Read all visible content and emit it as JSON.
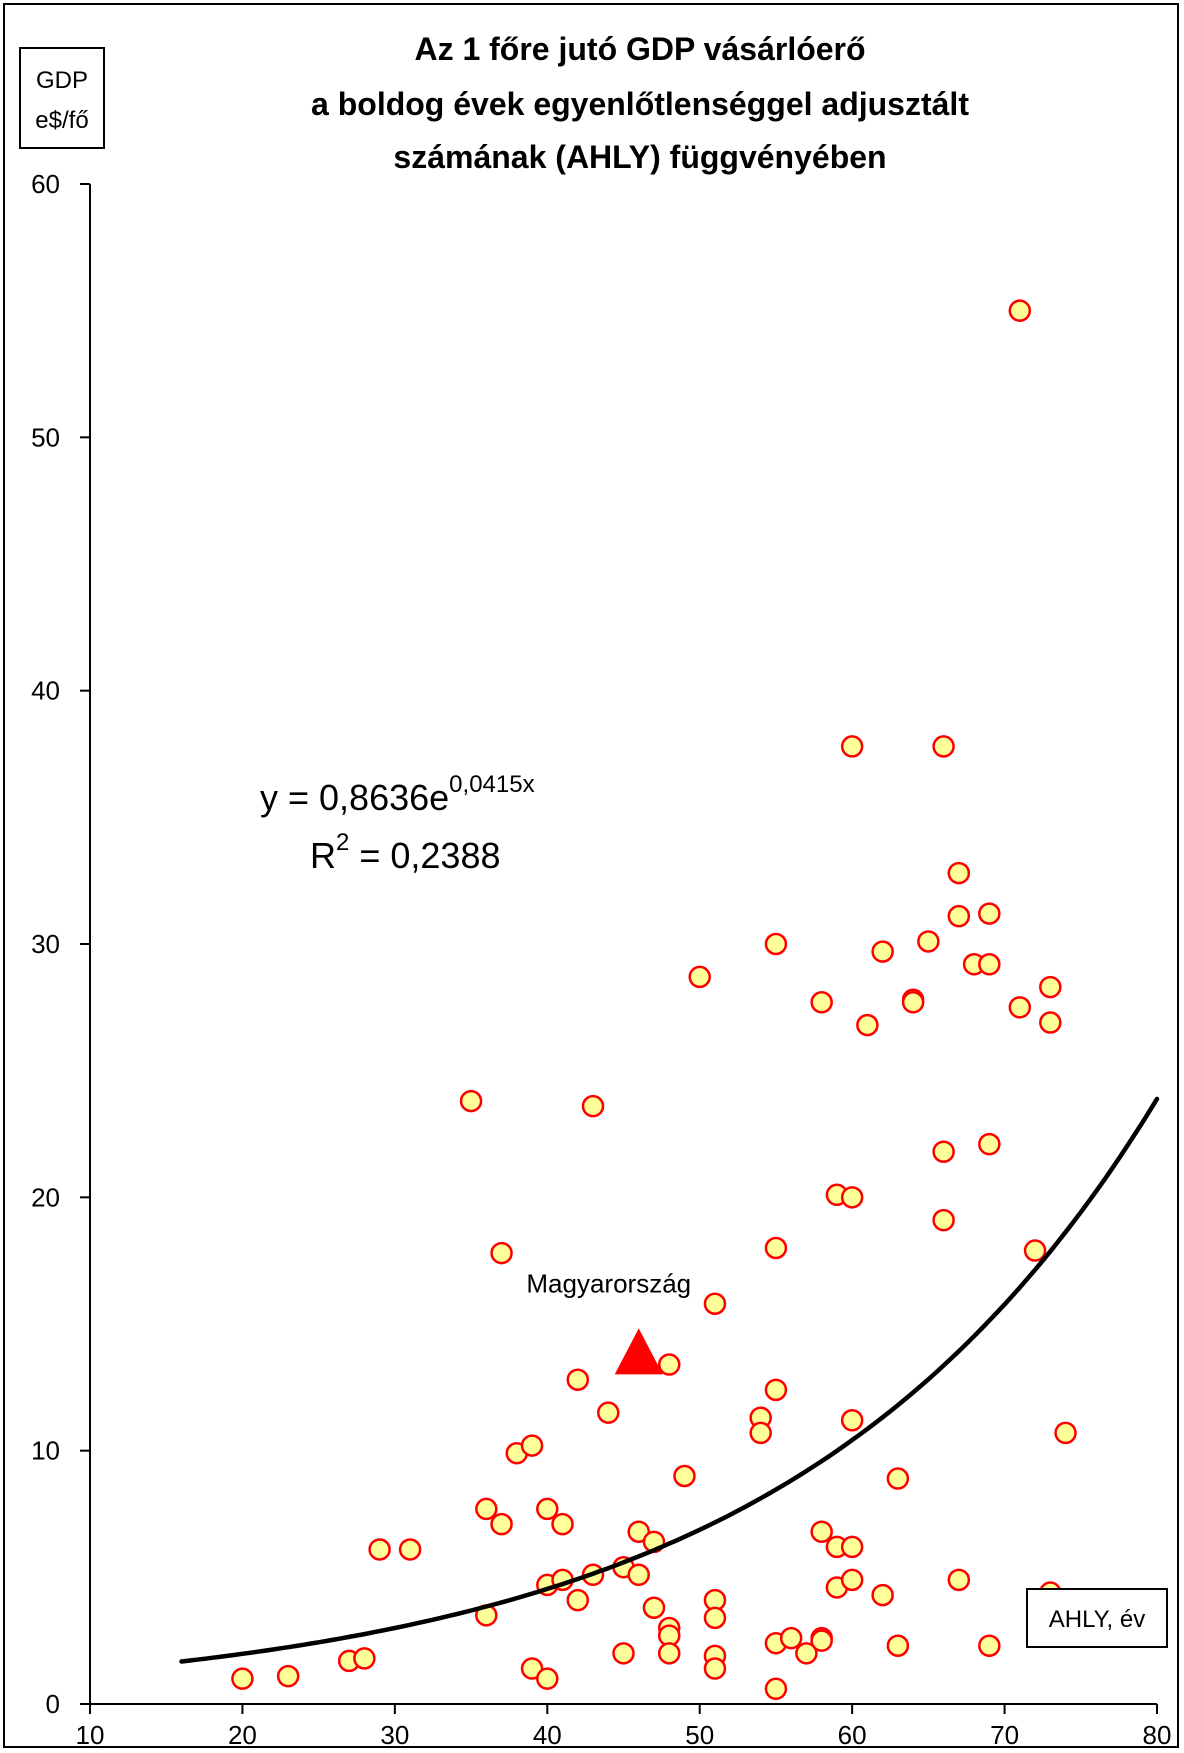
{
  "chart_data": {
    "type": "scatter",
    "title": [
      "Az 1 főre jutó GDP vásárlóerő",
      "a boldog évek egyenlőtlenséggel adjusztált",
      "számának (AHLY) függvényében"
    ],
    "ylabel": [
      "GDP",
      "e$/fő"
    ],
    "xlabel": "AHLY, év",
    "xlim": [
      10,
      80
    ],
    "ylim": [
      0,
      60
    ],
    "x_ticks": [
      "10",
      "20",
      "30",
      "40",
      "50",
      "60",
      "70",
      "80"
    ],
    "y_ticks": [
      "0",
      "10",
      "20",
      "30",
      "40",
      "50",
      "60"
    ],
    "grid": false,
    "marker_fill": "#ffff99",
    "marker_stroke": "#ff0000",
    "trend_color": "#000000",
    "points": [
      {
        "x": 20,
        "y": 1.0
      },
      {
        "x": 23,
        "y": 1.1
      },
      {
        "x": 27,
        "y": 1.7
      },
      {
        "x": 28,
        "y": 1.8
      },
      {
        "x": 29,
        "y": 6.1
      },
      {
        "x": 31,
        "y": 6.1
      },
      {
        "x": 35,
        "y": 23.8
      },
      {
        "x": 36,
        "y": 7.7
      },
      {
        "x": 36,
        "y": 3.5
      },
      {
        "x": 37,
        "y": 17.8
      },
      {
        "x": 37,
        "y": 7.1
      },
      {
        "x": 38,
        "y": 9.9
      },
      {
        "x": 39,
        "y": 10.2
      },
      {
        "x": 39,
        "y": 1.4
      },
      {
        "x": 40,
        "y": 7.7
      },
      {
        "x": 40,
        "y": 4.7
      },
      {
        "x": 40,
        "y": 1.0
      },
      {
        "x": 41,
        "y": 7.1
      },
      {
        "x": 41,
        "y": 4.9
      },
      {
        "x": 42,
        "y": 12.8
      },
      {
        "x": 42,
        "y": 4.1
      },
      {
        "x": 43,
        "y": 23.6
      },
      {
        "x": 43,
        "y": 5.1
      },
      {
        "x": 44,
        "y": 11.5
      },
      {
        "x": 45,
        "y": 5.4
      },
      {
        "x": 45,
        "y": 2.0
      },
      {
        "x": 46,
        "y": 6.8
      },
      {
        "x": 46,
        "y": 5.1
      },
      {
        "x": 47,
        "y": 6.4
      },
      {
        "x": 47,
        "y": 3.8
      },
      {
        "x": 48,
        "y": 13.4
      },
      {
        "x": 48,
        "y": 3.0
      },
      {
        "x": 48,
        "y": 2.7
      },
      {
        "x": 48,
        "y": 2.0
      },
      {
        "x": 49,
        "y": 9.0
      },
      {
        "x": 50,
        "y": 28.7
      },
      {
        "x": 51,
        "y": 15.8
      },
      {
        "x": 51,
        "y": 4.1
      },
      {
        "x": 51,
        "y": 3.4
      },
      {
        "x": 51,
        "y": 1.9
      },
      {
        "x": 51,
        "y": 1.4
      },
      {
        "x": 54,
        "y": 11.3
      },
      {
        "x": 54,
        "y": 10.7
      },
      {
        "x": 55,
        "y": 30.0
      },
      {
        "x": 55,
        "y": 18.0
      },
      {
        "x": 55,
        "y": 12.4
      },
      {
        "x": 55,
        "y": 2.4
      },
      {
        "x": 55,
        "y": 0.6
      },
      {
        "x": 56,
        "y": 2.6
      },
      {
        "x": 57,
        "y": 2.0
      },
      {
        "x": 58,
        "y": 27.7
      },
      {
        "x": 58,
        "y": 6.8
      },
      {
        "x": 58,
        "y": 2.6
      },
      {
        "x": 58,
        "y": 2.5
      },
      {
        "x": 59,
        "y": 20.1
      },
      {
        "x": 59,
        "y": 6.2
      },
      {
        "x": 59,
        "y": 4.6
      },
      {
        "x": 60,
        "y": 37.8
      },
      {
        "x": 60,
        "y": 20.0
      },
      {
        "x": 60,
        "y": 11.2
      },
      {
        "x": 60,
        "y": 6.2
      },
      {
        "x": 60,
        "y": 4.9
      },
      {
        "x": 61,
        "y": 26.8
      },
      {
        "x": 62,
        "y": 29.7
      },
      {
        "x": 62,
        "y": 4.3
      },
      {
        "x": 63,
        "y": 8.9
      },
      {
        "x": 63,
        "y": 2.3
      },
      {
        "x": 64,
        "y": 27.8
      },
      {
        "x": 64,
        "y": 27.7
      },
      {
        "x": 65,
        "y": 30.1
      },
      {
        "x": 66,
        "y": 37.8
      },
      {
        "x": 66,
        "y": 21.8
      },
      {
        "x": 66,
        "y": 19.1
      },
      {
        "x": 67,
        "y": 32.8
      },
      {
        "x": 67,
        "y": 31.1
      },
      {
        "x": 67,
        "y": 4.9
      },
      {
        "x": 68,
        "y": 29.2
      },
      {
        "x": 69,
        "y": 31.2
      },
      {
        "x": 69,
        "y": 29.2
      },
      {
        "x": 69,
        "y": 22.1
      },
      {
        "x": 69,
        "y": 2.3
      },
      {
        "x": 71,
        "y": 55.0
      },
      {
        "x": 71,
        "y": 27.5
      },
      {
        "x": 72,
        "y": 17.9
      },
      {
        "x": 73,
        "y": 28.3
      },
      {
        "x": 73,
        "y": 26.9
      },
      {
        "x": 73,
        "y": 4.4
      },
      {
        "x": 74,
        "y": 10.7
      }
    ],
    "highlight": {
      "label": "Magyarország",
      "x": 46,
      "y": 13.8,
      "marker": "triangle",
      "color": "#ff0000"
    },
    "trendline": {
      "type": "exponential",
      "a": 0.8636,
      "b": 0.0415,
      "x_start": 16,
      "x_end": 80,
      "equation_main": "y = 0,8636e",
      "equation_exp": "0,0415x",
      "r2_main": "R",
      "r2_sup": "2",
      "r2_value": " = 0,2388"
    }
  }
}
